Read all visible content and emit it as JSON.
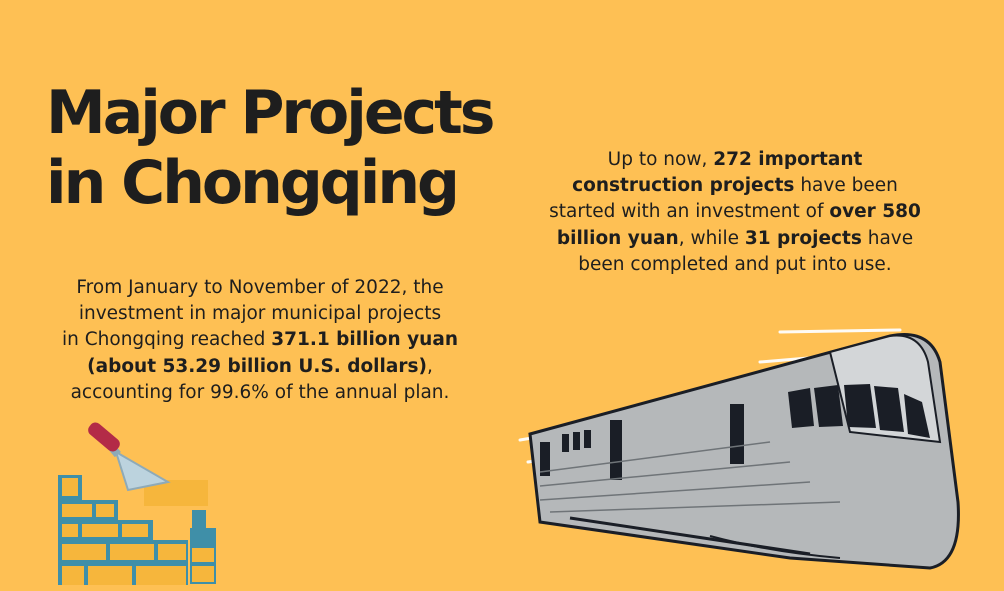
{
  "title": {
    "line1": "Major Projects",
    "line2": "in Chongqing"
  },
  "left_text": {
    "l1": "From January to November of 2022, the",
    "l2": "investment in major municipal projects",
    "l3_pre": "in Chongqing reached ",
    "l3_bold": "371.1 billion yuan",
    "l4_bold": "(about 53.29 billion U.S. dollars)",
    "l4_post": ",",
    "l5": "accounting for 99.6% of the annual plan."
  },
  "right_text": {
    "l1_pre": "Up to now, ",
    "l1_bold": "272 important",
    "l2_bold": "construction projects",
    "l2_post": " have been",
    "l3_pre": "started with an investment of ",
    "l3_bold": "over 580",
    "l4_bold": "billion yuan",
    "l4_mid": ", while ",
    "l4_bold2": "31 projects",
    "l4_post": " have",
    "l5": "been completed and put into use."
  },
  "colors": {
    "background": "#fec054",
    "text": "#1e1e1e",
    "wall": "#3f8fa8",
    "brick": "#f6b63c",
    "trowel_handle": "#b32b47",
    "trowel_blade": "#bcd3de",
    "train_body": "#b5b8ba",
    "train_window": "#1a1e26"
  },
  "icons": {
    "bricks": "brick-wall-trowel-icon",
    "train": "high-speed-train-icon"
  }
}
